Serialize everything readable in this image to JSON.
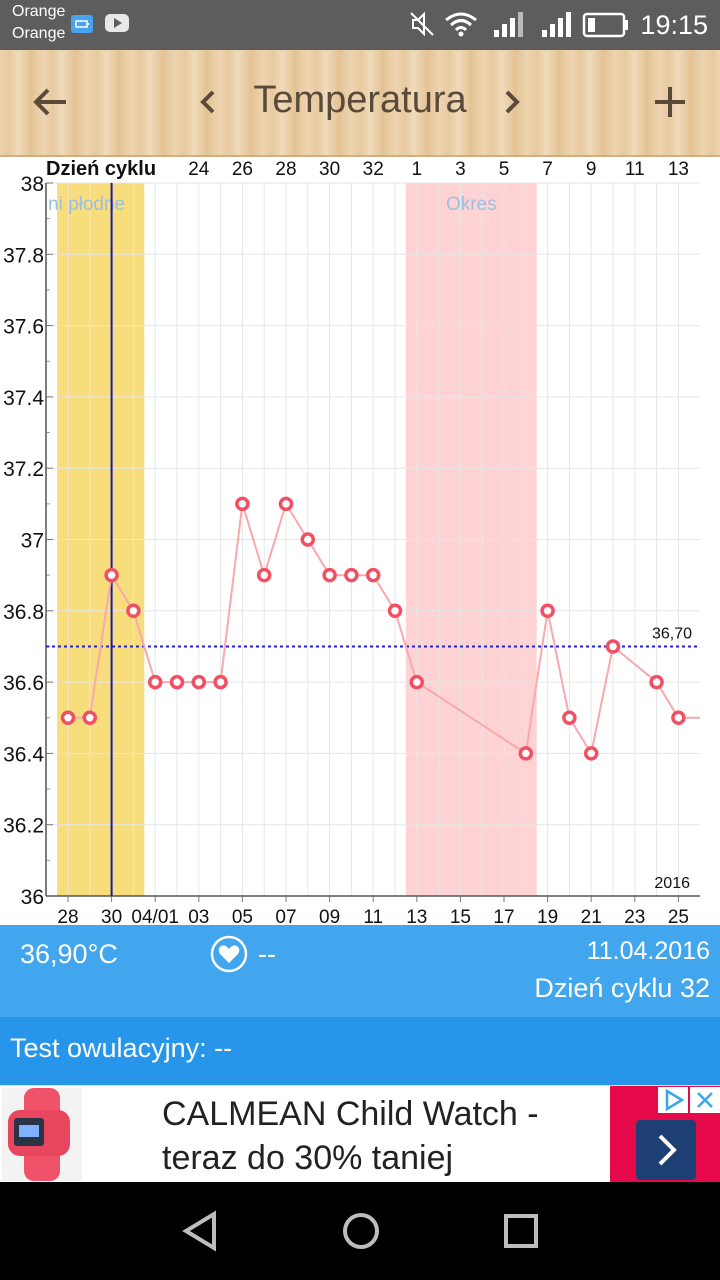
{
  "status_bar": {
    "carrier_line1": "Orange",
    "carrier_line2": "Orange",
    "time": "19:15",
    "icons": [
      "battery-saver-icon",
      "youtube-icon",
      "mute-icon",
      "wifi-icon",
      "signal-icon",
      "signal-icon",
      "battery-icon"
    ]
  },
  "toolbar": {
    "title": "Temperatura",
    "icons": [
      "back-arrow-icon",
      "chevron-left-icon",
      "chevron-right-icon",
      "plus-icon"
    ]
  },
  "chart_data": {
    "type": "line",
    "top_axis_label": "Dzień cyklu",
    "top_ticks": [
      "24",
      "26",
      "28",
      "30",
      "32",
      "1",
      "3",
      "5",
      "7",
      "9",
      "11",
      "13"
    ],
    "bottom_ticks": [
      "28",
      "30",
      "04/01",
      "03",
      "05",
      "07",
      "09",
      "11",
      "13",
      "15",
      "17",
      "19",
      "21",
      "23",
      "25"
    ],
    "y_ticks": [
      "38",
      "37.8",
      "37.6",
      "37.4",
      "37.2",
      "37",
      "36.8",
      "36.6",
      "36.4",
      "36.2",
      "36"
    ],
    "ylim": [
      36,
      38
    ],
    "year_label": "2016",
    "x": [
      "03-28",
      "03-29",
      "03-30",
      "03-31",
      "04-01",
      "04-02",
      "04-03",
      "04-04",
      "04-05",
      "04-06",
      "04-07",
      "04-08",
      "04-09",
      "04-10",
      "04-11",
      "04-12",
      "04-13",
      "04-18",
      "04-19",
      "04-20",
      "04-21",
      "04-22",
      "04-24",
      "04-25"
    ],
    "series": [
      {
        "values": [
          36.5,
          36.5,
          36.9,
          36.8,
          36.6,
          36.6,
          36.6,
          36.6,
          37.1,
          36.9,
          37.1,
          37.0,
          36.9,
          36.9,
          36.9,
          36.8,
          36.6,
          36.4,
          36.8,
          36.5,
          36.4,
          36.7,
          36.6,
          36.5
        ],
        "color": "#f24f63"
      }
    ],
    "reference_line": {
      "value": 36.7,
      "label": "36,70",
      "color": "#2020cc"
    },
    "bands": [
      {
        "label": "ni płodne",
        "from": "03-27",
        "to": "03-31",
        "color": "#f7dd7c"
      },
      {
        "label": "Okres",
        "from": "04-12",
        "to": "04-18",
        "color": "#ffd3d3"
      }
    ],
    "selected_date": "03-30",
    "grid": true
  },
  "info": {
    "temperature": "36,90°C",
    "heart_value": "--",
    "date": "11.04.2016",
    "cycle_day": "Dzień cyklu 32"
  },
  "test": {
    "label": "Test owulacyjny: --"
  },
  "ad": {
    "line1": "CALMEAN Child Watch -",
    "line2": "teraz do 30% taniej",
    "accent": "#e60a4a"
  },
  "navbar": {
    "icons": [
      "back-icon",
      "home-icon",
      "recents-icon"
    ]
  }
}
